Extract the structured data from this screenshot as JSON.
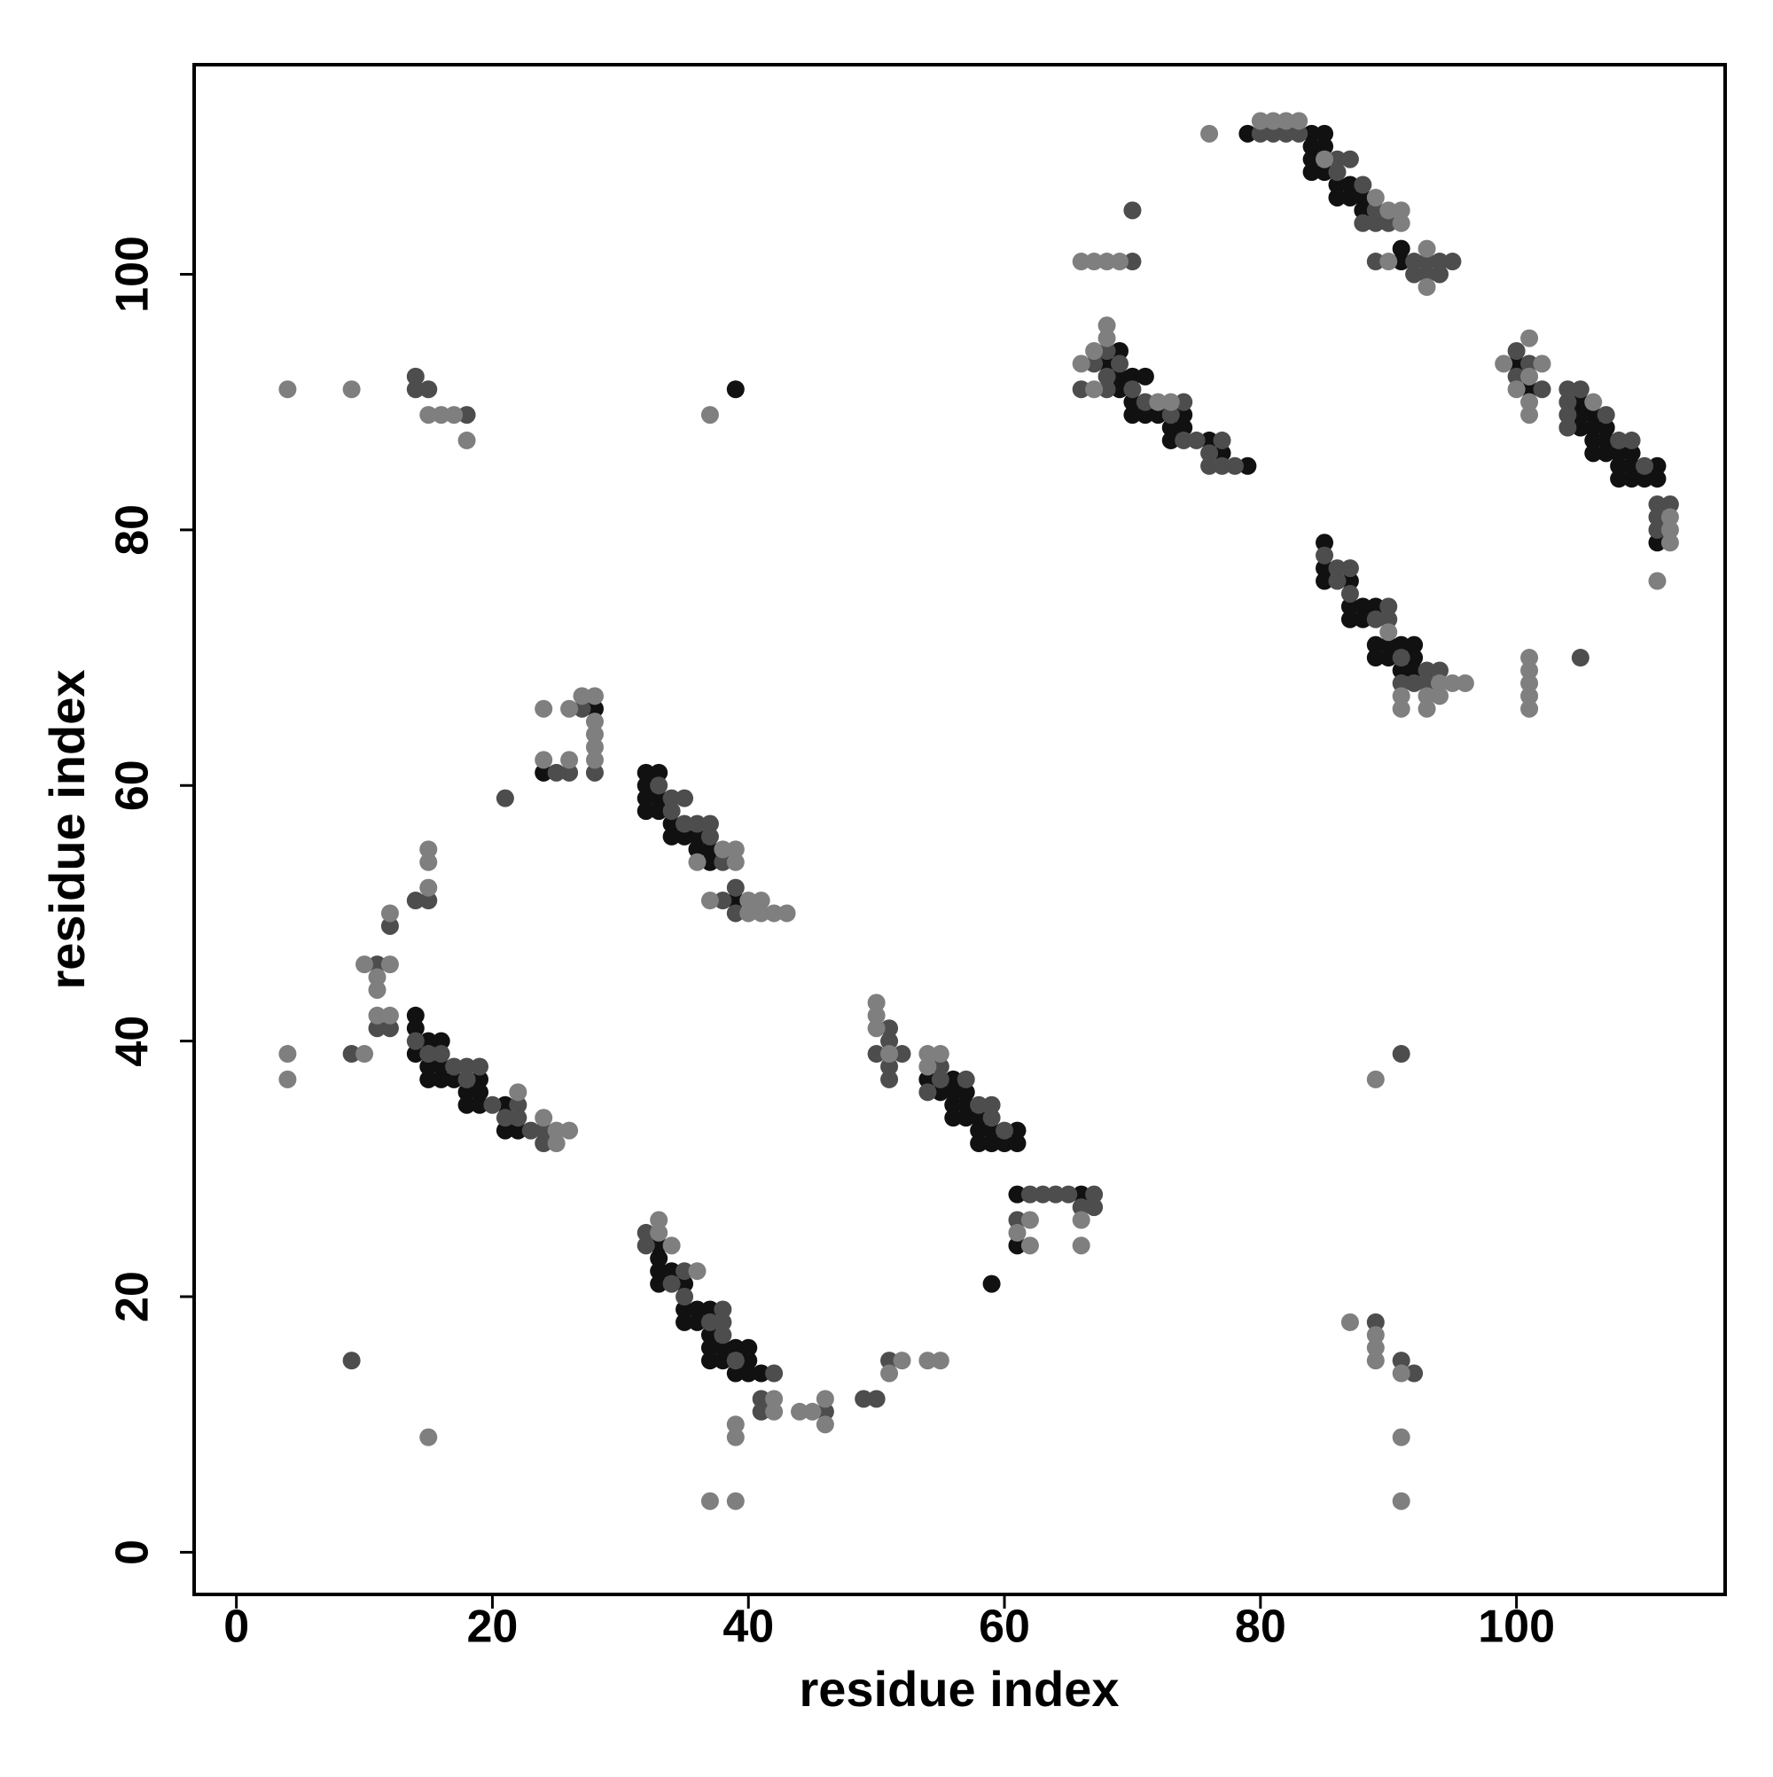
{
  "chart_data": {
    "type": "scatter",
    "xlabel": "residue index",
    "ylabel": "residue index",
    "xlim": [
      -3.3,
      116.3
    ],
    "ylim": [
      -3.3,
      116.4
    ],
    "xticks": [
      0,
      20,
      40,
      60,
      80,
      100
    ],
    "yticks": [
      0,
      20,
      40,
      60,
      80,
      100
    ],
    "series": [
      {
        "color": "#111111",
        "x": [
          79,
          84,
          85,
          84,
          85,
          84,
          84,
          85,
          86,
          87,
          86,
          87,
          88,
          88,
          91,
          91,
          69,
          68,
          69,
          70,
          71,
          69,
          70,
          70,
          71,
          72,
          74,
          73,
          74,
          73,
          76,
          77,
          79,
          100,
          101,
          105,
          105,
          106,
          105,
          106,
          107,
          106,
          107,
          106,
          107,
          108,
          109,
          108,
          109,
          111,
          108,
          109,
          110,
          111,
          111,
          85,
          85,
          85,
          87,
          87,
          88,
          89,
          87,
          88,
          89,
          90,
          91,
          92,
          89,
          90,
          92,
          91,
          92,
          28,
          24,
          32,
          33,
          32,
          32,
          33,
          32,
          33,
          34,
          34,
          35,
          36,
          36,
          37,
          37,
          39,
          14,
          14,
          15,
          16,
          14,
          15,
          16,
          15,
          16,
          17,
          19,
          18,
          19,
          18,
          19,
          21,
          21,
          22,
          33,
          33,
          33,
          34,
          33,
          35,
          35,
          36,
          37,
          35,
          36,
          37,
          37,
          38,
          39,
          40,
          37,
          38,
          40,
          39,
          40,
          41,
          54,
          56,
          55,
          56,
          57,
          56,
          57,
          56,
          57,
          58,
          58,
          59,
          61,
          58,
          59,
          60,
          61,
          61,
          66,
          61,
          59,
          39
        ],
        "values": [
          111,
          111,
          111,
          110,
          110,
          109,
          108,
          108,
          107,
          107,
          106,
          106,
          106,
          105,
          101,
          102,
          94,
          93,
          92,
          92,
          92,
          91,
          90,
          89,
          89,
          89,
          89,
          88,
          88,
          87,
          87,
          86,
          85,
          93,
          91,
          90,
          89,
          89,
          88,
          88,
          88,
          87,
          87,
          86,
          86,
          86,
          86,
          85,
          85,
          85,
          84,
          84,
          84,
          84,
          79,
          79,
          77,
          76,
          76,
          74,
          74,
          74,
          73,
          73,
          71,
          71,
          71,
          71,
          70,
          70,
          70,
          69,
          69,
          66,
          61,
          61,
          61,
          60,
          59,
          59,
          58,
          58,
          57,
          56,
          56,
          56,
          55,
          55,
          54,
          51,
          42,
          41,
          40,
          40,
          39,
          38,
          38,
          37,
          37,
          37,
          37,
          36,
          36,
          35,
          35,
          35,
          33,
          33,
          24,
          23,
          22,
          22,
          21,
          21,
          19,
          19,
          19,
          18,
          18,
          17,
          16,
          16,
          16,
          16,
          15,
          15,
          15,
          14,
          14,
          14,
          37,
          37,
          36,
          36,
          36,
          35,
          35,
          34,
          34,
          34,
          33,
          33,
          33,
          32,
          32,
          32,
          32,
          28,
          28,
          24,
          21,
          91
        ]
      },
      {
        "color": "#4d4d4d",
        "x": [
          80,
          81,
          82,
          83,
          86,
          86,
          87,
          88,
          89,
          88,
          89,
          90,
          89,
          92,
          93,
          94,
          95,
          92,
          93,
          94,
          70,
          70,
          68,
          67,
          69,
          68,
          66,
          68,
          70,
          71,
          74,
          73,
          74,
          75,
          77,
          76,
          76,
          77,
          78,
          100,
          101,
          100,
          102,
          104,
          105,
          104,
          104,
          107,
          104,
          108,
          109,
          110,
          111,
          112,
          111,
          111,
          85,
          86,
          87,
          86,
          87,
          90,
          89,
          90,
          91,
          93,
          94,
          91,
          92,
          93,
          105,
          27,
          28,
          25,
          26,
          21,
          33,
          34,
          35,
          34,
          35,
          36,
          37,
          37,
          38,
          38,
          39,
          39,
          14,
          15,
          12,
          11,
          11,
          12,
          9,
          14,
          15,
          16,
          17,
          18,
          19,
          18,
          20,
          22,
          21,
          22,
          23,
          24,
          24,
          32,
          32,
          35,
          34,
          35,
          38,
          37,
          38,
          38,
          39,
          42,
          41,
          41,
          46,
          49,
          50,
          51,
          51,
          51,
          50,
          52,
          51,
          51,
          55,
          55,
          57,
          54,
          58,
          59,
          59,
          60,
          62,
          63,
          64,
          65,
          67,
          66,
          67,
          61,
          14,
          14,
          15,
          18,
          9,
          89,
          91,
          92,
          91
        ],
        "values": [
          111,
          111,
          111,
          111,
          108,
          109,
          109,
          107,
          105,
          104,
          104,
          104,
          101,
          101,
          101,
          101,
          101,
          100,
          100,
          100,
          105,
          101,
          94,
          93,
          93,
          92,
          91,
          91,
          91,
          90,
          90,
          89,
          87,
          87,
          87,
          86,
          85,
          85,
          85,
          94,
          93,
          92,
          91,
          91,
          91,
          90,
          89,
          89,
          88,
          87,
          87,
          85,
          82,
          82,
          81,
          80,
          78,
          77,
          77,
          76,
          75,
          74,
          73,
          73,
          70,
          69,
          69,
          68,
          68,
          68,
          70,
          66,
          61,
          61,
          61,
          59,
          60,
          59,
          59,
          58,
          57,
          57,
          57,
          56,
          54,
          51,
          52,
          50,
          51,
          51,
          49,
          46,
          41,
          41,
          39,
          40,
          39,
          39,
          38,
          38,
          38,
          37,
          35,
          35,
          34,
          34,
          33,
          33,
          32,
          25,
          24,
          22,
          21,
          20,
          19,
          18,
          18,
          17,
          15,
          14,
          12,
          11,
          11,
          12,
          12,
          15,
          41,
          40,
          39,
          39,
          38,
          37,
          38,
          37,
          37,
          36,
          35,
          35,
          34,
          33,
          28,
          28,
          28,
          28,
          28,
          27,
          27,
          26,
          92,
          91,
          91,
          89,
          15,
          18,
          15,
          14,
          39
        ]
      },
      {
        "color": "#7f7f7f",
        "x": [
          76,
          80,
          81,
          82,
          83,
          85,
          89,
          90,
          91,
          91,
          90,
          93,
          93,
          66,
          67,
          68,
          69,
          68,
          68,
          67,
          66,
          67,
          72,
          73,
          99,
          101,
          102,
          101,
          100,
          101,
          101,
          106,
          112,
          112,
          112,
          111,
          90,
          94,
          95,
          96,
          91,
          93,
          94,
          91,
          93,
          101,
          101,
          101,
          101,
          101,
          24,
          26,
          27,
          28,
          28,
          28,
          28,
          28,
          24,
          26,
          38,
          39,
          36,
          39,
          37,
          40,
          41,
          40,
          41,
          42,
          43,
          15,
          15,
          15,
          12,
          10,
          12,
          11,
          11,
          11,
          12,
          10,
          4,
          4,
          22,
          25,
          26,
          24,
          25,
          33,
          33,
          34,
          36,
          42,
          42,
          39,
          39,
          44,
          45,
          46,
          46,
          52,
          51,
          54,
          55,
          37,
          39,
          50,
          50,
          50,
          51,
          54,
          55,
          54,
          62,
          61,
          62,
          66,
          66,
          4,
          9,
          15,
          16,
          17,
          18,
          37,
          15,
          87,
          89,
          89,
          89,
          91,
          91,
          91,
          89
        ],
        "values": [
          111,
          112,
          112,
          112,
          112,
          109,
          106,
          105,
          105,
          104,
          101,
          102,
          99,
          101,
          101,
          101,
          101,
          96,
          95,
          94,
          93,
          91,
          90,
          90,
          93,
          95,
          93,
          92,
          91,
          90,
          89,
          90,
          81,
          80,
          79,
          76,
          72,
          68,
          68,
          68,
          67,
          67,
          67,
          66,
          66,
          70,
          69,
          68,
          67,
          66,
          66,
          66,
          67,
          67,
          65,
          64,
          63,
          62,
          62,
          62,
          55,
          55,
          54,
          54,
          51,
          51,
          51,
          50,
          50,
          50,
          50,
          55,
          54,
          52,
          50,
          46,
          46,
          45,
          44,
          42,
          42,
          39,
          39,
          37,
          36,
          33,
          33,
          34,
          32,
          26,
          25,
          24,
          22,
          12,
          11,
          10,
          9,
          11,
          11,
          12,
          10,
          15,
          14,
          15,
          15,
          4,
          4,
          43,
          42,
          41,
          39,
          39,
          39,
          38,
          26,
          25,
          24,
          26,
          24,
          91,
          91,
          89,
          89,
          89,
          87,
          89,
          9,
          18,
          17,
          16,
          15,
          14,
          9,
          4,
          37
        ]
      }
    ]
  }
}
